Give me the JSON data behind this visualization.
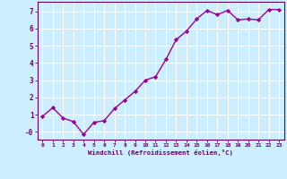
{
  "x": [
    0,
    1,
    2,
    3,
    4,
    5,
    6,
    7,
    8,
    9,
    10,
    11,
    12,
    13,
    14,
    15,
    16,
    17,
    18,
    19,
    20,
    21,
    22,
    23
  ],
  "y": [
    0.9,
    1.4,
    0.8,
    0.6,
    -0.15,
    0.55,
    0.65,
    1.35,
    1.85,
    2.35,
    3.0,
    3.2,
    4.2,
    5.35,
    5.85,
    6.55,
    7.05,
    6.8,
    7.05,
    6.5,
    6.55,
    6.5,
    7.1,
    7.1
  ],
  "xlabel": "Windchill (Refroidissement éolien,°C)",
  "xlim": [
    -0.5,
    23.5
  ],
  "ylim": [
    -0.45,
    7.55
  ],
  "yticks": [
    0,
    1,
    2,
    3,
    4,
    5,
    6,
    7
  ],
  "ytick_labels": [
    "-0",
    "1",
    "2",
    "3",
    "4",
    "5",
    "6",
    "7"
  ],
  "xticks": [
    0,
    1,
    2,
    3,
    4,
    5,
    6,
    7,
    8,
    9,
    10,
    11,
    12,
    13,
    14,
    15,
    16,
    17,
    18,
    19,
    20,
    21,
    22,
    23
  ],
  "line_color": "#990099",
  "marker": "D",
  "marker_size": 2.2,
  "bg_color": "#cceeff",
  "grid_color": "#ffffff",
  "tick_color": "#660066",
  "label_color": "#660066",
  "line_width": 1.0,
  "spine_color": "#660066"
}
